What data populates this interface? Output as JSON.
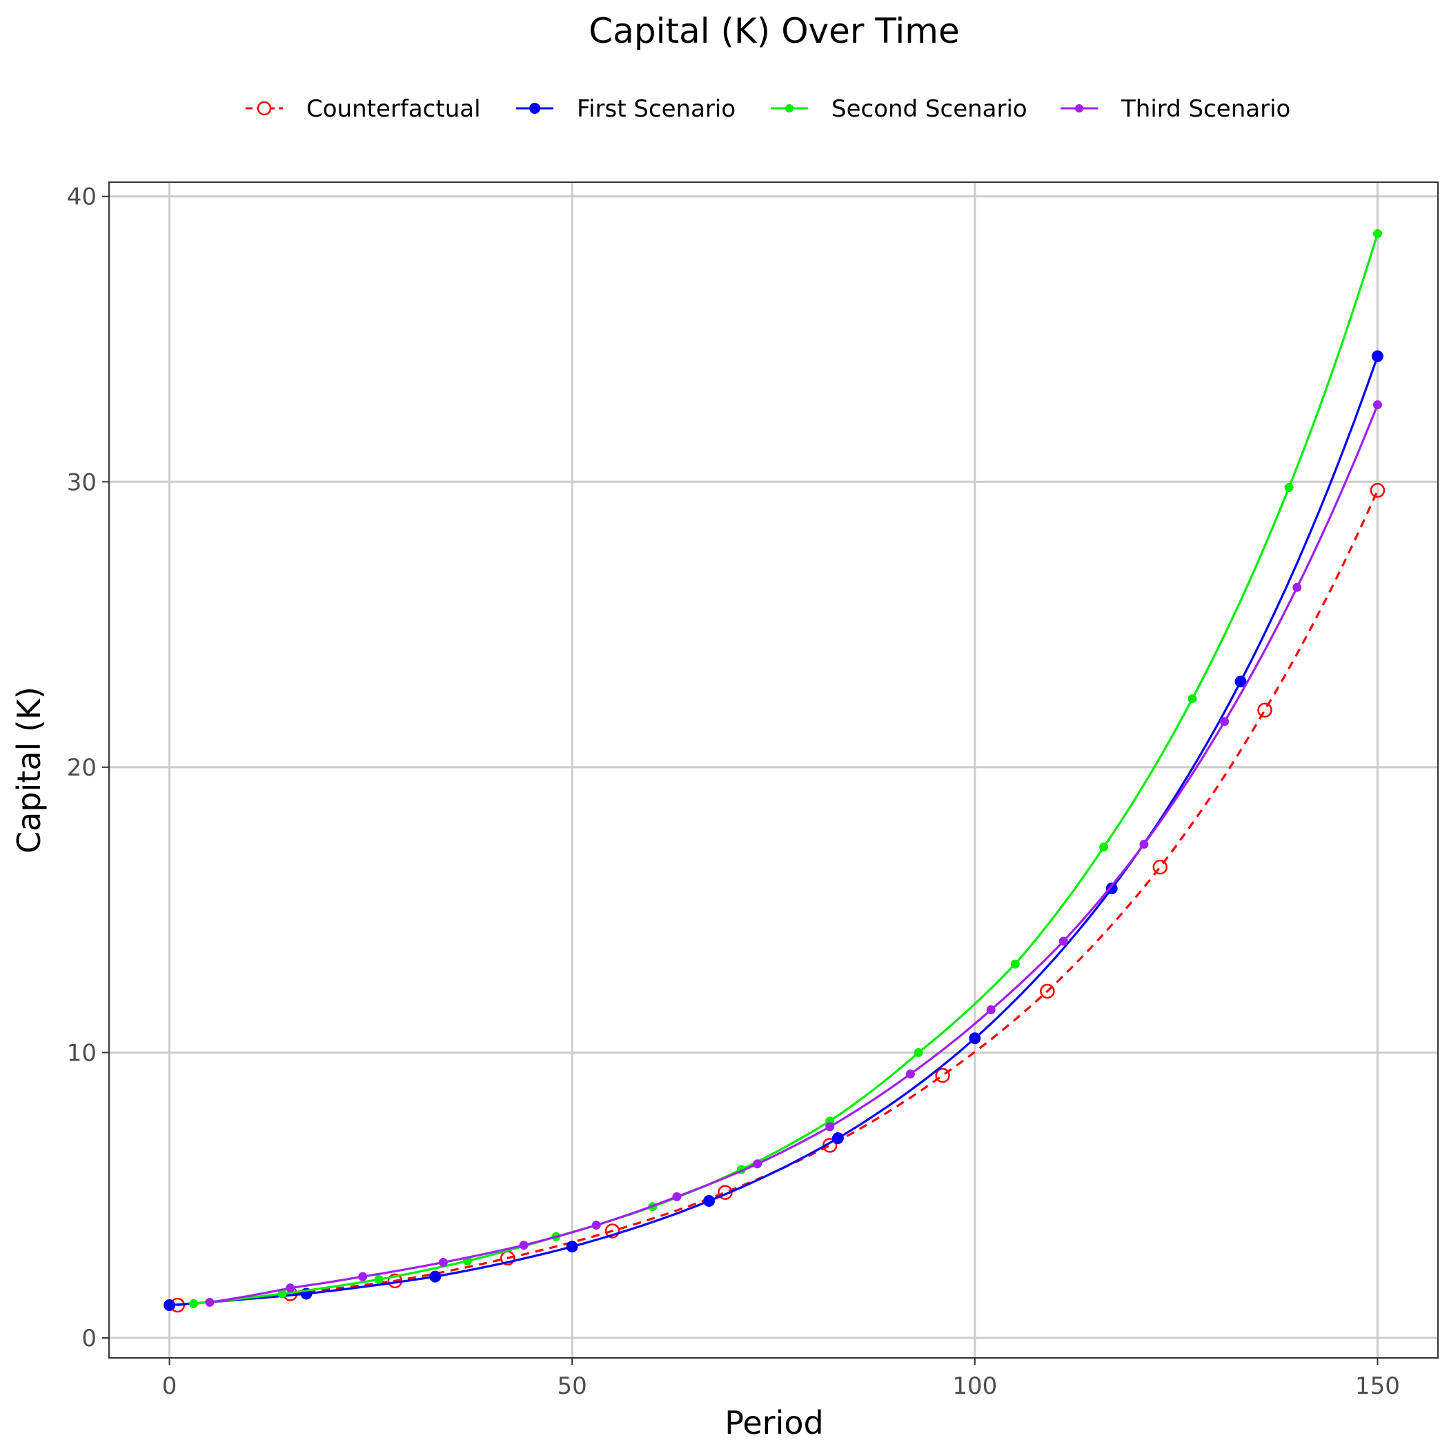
{
  "chart_data": {
    "type": "line",
    "title": "Capital (K) Over Time",
    "xlabel": "Period",
    "ylabel": "Capital (K)",
    "xlim": [
      -7.5,
      157.5
    ],
    "ylim": [
      -0.7,
      40.5
    ],
    "xticks": [
      0,
      50,
      100,
      150
    ],
    "yticks": [
      0,
      10,
      20,
      30,
      40
    ],
    "grid": true,
    "legend": "top",
    "series": [
      {
        "name": "Counterfactual",
        "color": "#ff0000",
        "dashed": true,
        "marker": "open-circle",
        "points": [
          [
            1,
            1.15
          ],
          [
            15,
            1.55
          ],
          [
            28,
            2.0
          ],
          [
            42,
            2.8
          ],
          [
            55,
            3.75
          ],
          [
            69,
            5.1
          ],
          [
            82,
            6.75
          ],
          [
            96,
            9.2
          ],
          [
            109,
            12.15
          ],
          [
            123,
            16.5
          ],
          [
            136,
            22.0
          ],
          [
            150,
            29.7
          ]
        ]
      },
      {
        "name": "First Scenario",
        "color": "#0000ff",
        "dashed": false,
        "marker": "filled-circle",
        "points": [
          [
            0,
            1.15
          ],
          [
            17,
            1.55
          ],
          [
            33,
            2.15
          ],
          [
            50,
            3.2
          ],
          [
            67,
            4.8
          ],
          [
            83,
            7.0
          ],
          [
            100,
            10.5
          ],
          [
            117,
            15.75
          ],
          [
            133,
            23.0
          ],
          [
            150,
            34.4
          ]
        ]
      },
      {
        "name": "Second Scenario",
        "color": "#00ee00",
        "dashed": false,
        "marker": "small-circle",
        "points": [
          [
            3,
            1.2
          ],
          [
            14,
            1.55
          ],
          [
            26,
            2.05
          ],
          [
            37,
            2.7
          ],
          [
            48,
            3.55
          ],
          [
            60,
            4.6
          ],
          [
            71,
            5.9
          ],
          [
            82,
            7.6
          ],
          [
            93,
            10.0
          ],
          [
            105,
            13.1
          ],
          [
            116,
            17.2
          ],
          [
            127,
            22.4
          ],
          [
            139,
            29.8
          ],
          [
            150,
            38.7
          ]
        ]
      },
      {
        "name": "Third Scenario",
        "color": "#a020f0",
        "dashed": false,
        "marker": "small-circle",
        "points": [
          [
            5,
            1.25
          ],
          [
            15,
            1.75
          ],
          [
            24,
            2.15
          ],
          [
            34,
            2.65
          ],
          [
            44,
            3.25
          ],
          [
            53,
            3.95
          ],
          [
            63,
            4.95
          ],
          [
            73,
            6.1
          ],
          [
            82,
            7.4
          ],
          [
            92,
            9.25
          ],
          [
            102,
            11.5
          ],
          [
            111,
            13.9
          ],
          [
            121,
            17.3
          ],
          [
            131,
            21.6
          ],
          [
            140,
            26.3
          ],
          [
            150,
            32.7
          ]
        ]
      }
    ]
  }
}
